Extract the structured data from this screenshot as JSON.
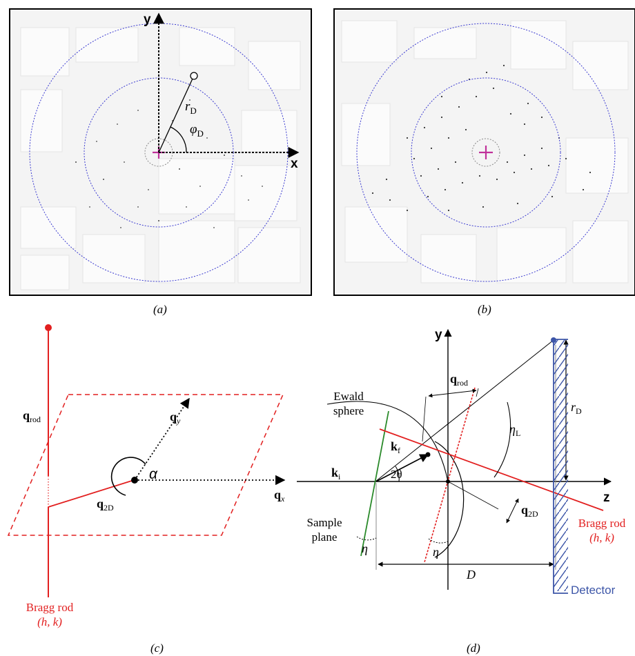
{
  "panel_a": {
    "caption": "(a)",
    "axis_y": "y",
    "axis_x": "x",
    "radius_label": "r",
    "radius_sub": "D",
    "angle_label": "φ",
    "angle_sub": "D"
  },
  "panel_b": {
    "caption": "(b)"
  },
  "panel_c": {
    "caption": "(c)",
    "q_rod": "q",
    "q_rod_sub": "rod",
    "q_y": "q",
    "q_y_sub": "y",
    "q_x": "q",
    "q_x_sub": "x",
    "q_2d": "q",
    "q_2d_sub": "2D",
    "alpha": "α",
    "bragg_line1": "Bragg rod",
    "bragg_line2": "(h, k)"
  },
  "panel_d": {
    "caption": "(d)",
    "axis_y": "y",
    "axis_z": "z",
    "ewald_line1": "Ewald",
    "ewald_line2": "sphere",
    "k_f": "k",
    "k_f_sub": "f",
    "k_i": "k",
    "k_i_sub": "i",
    "two_theta": "2θ",
    "q_rod": "q",
    "q_rod_sub": "rod",
    "eta_L": "η",
    "eta_L_sub": "L",
    "r_D": "r",
    "r_D_sub": "D",
    "q_2d": "q",
    "q_2d_sub": "2D",
    "sample_line1": "Sample",
    "sample_line2": "plane",
    "eta1": "η",
    "eta2": "η",
    "distance": "D",
    "bragg_line1": "Bragg rod",
    "bragg_line2": "(h, k)",
    "detector": "Detector"
  },
  "colors": {
    "ring": "#3a3ad0",
    "beam_center": "#c0309a",
    "bragg": "#e21f1f",
    "sample": "#2a8a2a",
    "detector": "#3d56a8",
    "ink": "#000000"
  }
}
